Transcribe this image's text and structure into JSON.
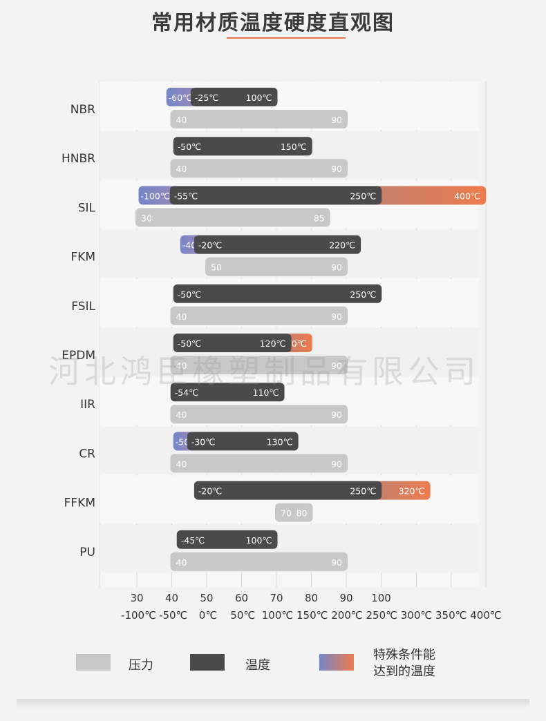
{
  "title": "常用材质温度硬度直观图",
  "watermark": "河北鸿臣橡塑制品有限公司",
  "colors": {
    "pressure": "#c8c8c8",
    "temperature": "#4a4a4a",
    "special_start": "#7387c9",
    "special_end": "#ee7b4d",
    "accent": "#e8794d",
    "grid": "#d8d8d8"
  },
  "legend": {
    "pressure_label": "压力",
    "temperature_label": "温度",
    "special_label_line1": "特殊条件能",
    "special_label_line2": "达到的温度"
  },
  "chart_data": {
    "type": "bar",
    "orientation": "horizontal-range",
    "x_axes": {
      "hardness_ticks": [
        "30",
        "40",
        "50",
        "60",
        "70",
        "80",
        "90",
        "100"
      ],
      "temperature_ticks": [
        "-100℃",
        "-50℃",
        "0℃",
        "50℃",
        "100℃",
        "150℃",
        "200℃",
        "250℃",
        "300℃",
        "350℃",
        "400℃"
      ]
    },
    "materials": [
      {
        "name": "NBR",
        "temp_min": -25,
        "temp_max": 100,
        "special_low": -60,
        "special_high": null,
        "hardness_min": 40,
        "hardness_max": 90,
        "temp_min_label": "-25℃",
        "temp_max_label": "100℃",
        "special_low_label": "-60℃",
        "special_high_label": "",
        "hardness_min_label": "40",
        "hardness_max_label": "90"
      },
      {
        "name": "HNBR",
        "temp_min": -50,
        "temp_max": 150,
        "special_low": null,
        "special_high": null,
        "hardness_min": 40,
        "hardness_max": 90,
        "temp_min_label": "-50℃",
        "temp_max_label": "150℃",
        "special_low_label": "",
        "special_high_label": "",
        "hardness_min_label": "40",
        "hardness_max_label": "90"
      },
      {
        "name": "SIL",
        "temp_min": -55,
        "temp_max": 250,
        "special_low": -100,
        "special_high": 400,
        "hardness_min": 30,
        "hardness_max": 85,
        "temp_min_label": "-55℃",
        "temp_max_label": "250℃",
        "special_low_label": "-100℃",
        "special_high_label": "400℃",
        "hardness_min_label": "30",
        "hardness_max_label": "85"
      },
      {
        "name": "FKM",
        "temp_min": -20,
        "temp_max": 220,
        "special_low": -40,
        "special_high": null,
        "hardness_min": 50,
        "hardness_max": 90,
        "temp_min_label": "-20℃",
        "temp_max_label": "220℃",
        "special_low_label": "-40℃",
        "special_high_label": "",
        "hardness_min_label": "50",
        "hardness_max_label": "90"
      },
      {
        "name": "FSIL",
        "temp_min": -50,
        "temp_max": 250,
        "special_low": null,
        "special_high": null,
        "hardness_min": 40,
        "hardness_max": 90,
        "temp_min_label": "-50℃",
        "temp_max_label": "250℃",
        "special_low_label": "",
        "special_high_label": "",
        "hardness_min_label": "40",
        "hardness_max_label": "90"
      },
      {
        "name": "EPDM",
        "temp_min": -50,
        "temp_max": 120,
        "special_low": null,
        "special_high": 150,
        "hardness_min": 40,
        "hardness_max": 90,
        "temp_min_label": "-50℃",
        "temp_max_label": "120℃",
        "special_low_label": "",
        "special_high_label": "150℃",
        "hardness_min_label": "40",
        "hardness_max_label": "90"
      },
      {
        "name": "IIR",
        "temp_min": -54,
        "temp_max": 110,
        "special_low": null,
        "special_high": null,
        "hardness_min": 40,
        "hardness_max": 90,
        "temp_min_label": "-54℃",
        "temp_max_label": "110℃",
        "special_low_label": "",
        "special_high_label": "",
        "hardness_min_label": "40",
        "hardness_max_label": "90"
      },
      {
        "name": "CR",
        "temp_min": -30,
        "temp_max": 130,
        "special_low": -50,
        "special_high": null,
        "hardness_min": 40,
        "hardness_max": 90,
        "temp_min_label": "-30℃",
        "temp_max_label": "130℃",
        "special_low_label": "-50℃",
        "special_high_label": "",
        "hardness_min_label": "40",
        "hardness_max_label": "90"
      },
      {
        "name": "FFKM",
        "temp_min": -20,
        "temp_max": 250,
        "special_low": null,
        "special_high": 320,
        "hardness_min": 70,
        "hardness_max": 80,
        "temp_min_label": "-20℃",
        "temp_max_label": "250℃",
        "special_low_label": "",
        "special_high_label": "320℃",
        "hardness_min_label": "70",
        "hardness_max_label": "80"
      },
      {
        "name": "PU",
        "temp_min": -45,
        "temp_max": 100,
        "special_low": null,
        "special_high": null,
        "hardness_min": 40,
        "hardness_max": 90,
        "temp_min_label": "-45℃",
        "temp_max_label": "100℃",
        "special_low_label": "",
        "special_high_label": "",
        "hardness_min_label": "40",
        "hardness_max_label": "90"
      }
    ]
  }
}
